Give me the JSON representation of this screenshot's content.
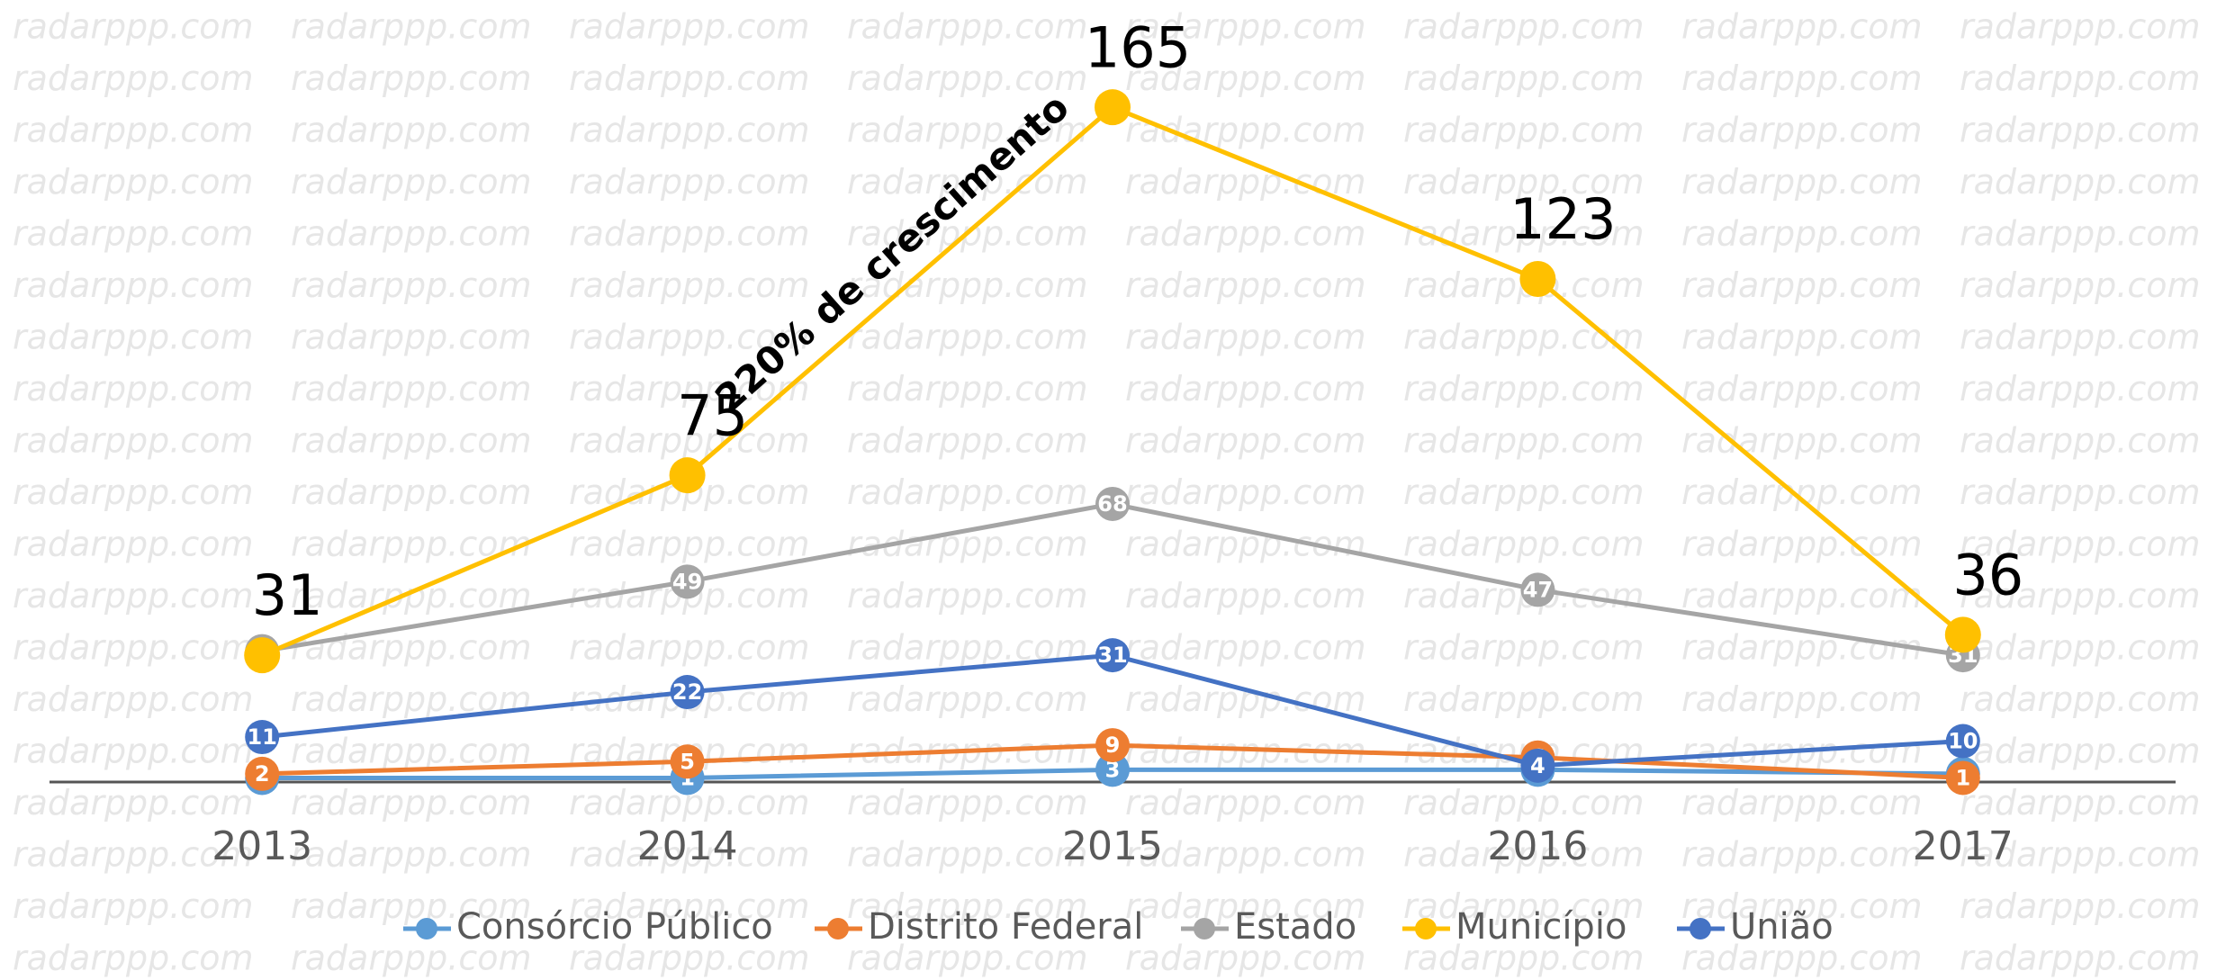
{
  "chart_data": {
    "type": "line",
    "watermark": "radarppp.com",
    "annotation": "220% de crescimento",
    "categories": [
      "2013",
      "2014",
      "2015",
      "2016",
      "2017"
    ],
    "ylim": [
      0,
      180
    ],
    "series": [
      {
        "name": "Consórcio Público",
        "color": "#5b9bd5",
        "values": [
          1,
          1,
          3,
          3,
          2
        ]
      },
      {
        "name": "Distrito Federal",
        "color": "#ed7d31",
        "values": [
          2,
          5,
          9,
          6,
          1
        ]
      },
      {
        "name": "Estado",
        "color": "#a5a5a5",
        "values": [
          32,
          49,
          68,
          47,
          31
        ]
      },
      {
        "name": "Município",
        "color": "#ffc000",
        "values": [
          31,
          75,
          165,
          123,
          36
        ]
      },
      {
        "name": "União",
        "color": "#4472c4",
        "values": [
          11,
          22,
          31,
          4,
          10
        ]
      }
    ]
  }
}
